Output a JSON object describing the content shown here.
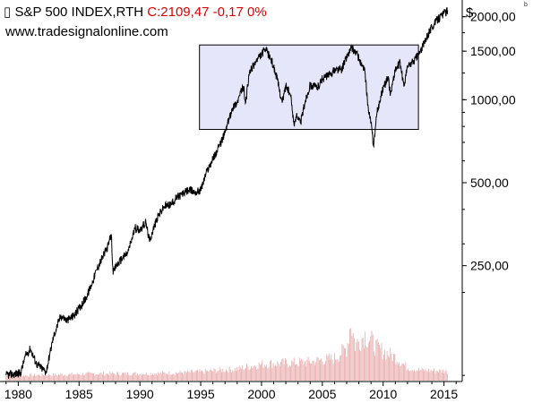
{
  "header": {
    "symbol": "S&P 500 INDEX,RTH",
    "close": "C:2109,47 -0,17 0%",
    "source": "www.tradesignalonline.com",
    "currency": "$",
    "corner_mark": "b"
  },
  "colors": {
    "price_line": "#000000",
    "volume_bars": "#e8a8a8",
    "highlight_fill": "#e6e6fa",
    "highlight_stroke": "#000000",
    "close_text": "#e00000"
  },
  "chart_data": {
    "type": "line",
    "title": "S&P 500 INDEX,RTH",
    "y_scale": "log",
    "ylim": [
      95,
      2300
    ],
    "xlim": [
      1978.5,
      2016.5
    ],
    "y_ticks": [
      {
        "value": 2000,
        "label": "2000,00"
      },
      {
        "value": 1500,
        "label": "1500,00"
      },
      {
        "value": 1000,
        "label": "1000,00"
      },
      {
        "value": 500,
        "label": "500,00"
      },
      {
        "value": 250,
        "label": "250,00"
      }
    ],
    "x_ticks": [
      {
        "value": 1980,
        "label": "1980"
      },
      {
        "value": 1985,
        "label": "1985"
      },
      {
        "value": 1990,
        "label": "1990"
      },
      {
        "value": 1995,
        "label": "1995"
      },
      {
        "value": 2000,
        "label": "2000"
      },
      {
        "value": 2005,
        "label": "2005"
      },
      {
        "value": 2010,
        "label": "2010"
      },
      {
        "value": 2015,
        "label": "2015"
      }
    ],
    "series": [
      {
        "points": [
          [
            1979.0,
            100
          ],
          [
            1980.2,
            102
          ],
          [
            1980.6,
            118
          ],
          [
            1981.0,
            125
          ],
          [
            1981.5,
            110
          ],
          [
            1982.3,
            103
          ],
          [
            1982.6,
            120
          ],
          [
            1982.9,
            138
          ],
          [
            1983.5,
            165
          ],
          [
            1984.0,
            158
          ],
          [
            1984.6,
            165
          ],
          [
            1985.0,
            175
          ],
          [
            1985.6,
            192
          ],
          [
            1986.0,
            212
          ],
          [
            1986.5,
            245
          ],
          [
            1987.0,
            272
          ],
          [
            1987.4,
            296
          ],
          [
            1987.65,
            325
          ],
          [
            1987.8,
            232
          ],
          [
            1988.0,
            248
          ],
          [
            1988.6,
            268
          ],
          [
            1989.0,
            278
          ],
          [
            1989.6,
            342
          ],
          [
            1990.0,
            338
          ],
          [
            1990.5,
            358
          ],
          [
            1990.8,
            305
          ],
          [
            1991.0,
            330
          ],
          [
            1991.5,
            378
          ],
          [
            1992.0,
            410
          ],
          [
            1992.6,
            418
          ],
          [
            1993.0,
            440
          ],
          [
            1993.6,
            458
          ],
          [
            1994.0,
            470
          ],
          [
            1994.6,
            462
          ],
          [
            1995.0,
            470
          ],
          [
            1995.5,
            550
          ],
          [
            1996.0,
            610
          ],
          [
            1996.5,
            672
          ],
          [
            1997.0,
            760
          ],
          [
            1997.6,
            935
          ],
          [
            1998.0,
            980
          ],
          [
            1998.5,
            1120
          ],
          [
            1998.7,
            975
          ],
          [
            1999.0,
            1250
          ],
          [
            1999.5,
            1370
          ],
          [
            2000.0,
            1460
          ],
          [
            2000.3,
            1520
          ],
          [
            2000.7,
            1430
          ],
          [
            2001.0,
            1320
          ],
          [
            2001.3,
            1180
          ],
          [
            2001.7,
            975
          ],
          [
            2002.0,
            1130
          ],
          [
            2002.4,
            1030
          ],
          [
            2002.7,
            800
          ],
          [
            2002.9,
            895
          ],
          [
            2003.2,
            820
          ],
          [
            2003.6,
            990
          ],
          [
            2004.0,
            1130
          ],
          [
            2004.6,
            1110
          ],
          [
            2005.0,
            1190
          ],
          [
            2005.6,
            1230
          ],
          [
            2006.0,
            1280
          ],
          [
            2006.6,
            1290
          ],
          [
            2007.0,
            1430
          ],
          [
            2007.4,
            1540
          ],
          [
            2007.8,
            1480
          ],
          [
            2008.2,
            1340
          ],
          [
            2008.5,
            1260
          ],
          [
            2008.8,
            900
          ],
          [
            2009.0,
            830
          ],
          [
            2009.2,
            680
          ],
          [
            2009.5,
            900
          ],
          [
            2010.0,
            1110
          ],
          [
            2010.4,
            1200
          ],
          [
            2010.6,
            1050
          ],
          [
            2011.0,
            1290
          ],
          [
            2011.4,
            1360
          ],
          [
            2011.7,
            1120
          ],
          [
            2012.0,
            1320
          ],
          [
            2012.5,
            1380
          ],
          [
            2013.0,
            1480
          ],
          [
            2013.5,
            1650
          ],
          [
            2014.0,
            1840
          ],
          [
            2014.5,
            1960
          ],
          [
            2015.0,
            2060
          ],
          [
            2015.3,
            2109.47
          ]
        ]
      }
    ],
    "highlight_box": {
      "x": [
        1994.9,
        2012.9
      ],
      "y": [
        780,
        1580
      ]
    },
    "volume": {
      "relative": [
        [
          1979.0,
          0.08
        ],
        [
          1983.0,
          0.1
        ],
        [
          1987.0,
          0.12
        ],
        [
          1991.0,
          0.12
        ],
        [
          1995.0,
          0.15
        ],
        [
          1998.0,
          0.2
        ],
        [
          2000.0,
          0.28
        ],
        [
          2002.0,
          0.3
        ],
        [
          2004.0,
          0.32
        ],
        [
          2006.0,
          0.38
        ],
        [
          2007.0,
          0.55
        ],
        [
          2007.35,
          1.0
        ],
        [
          2007.7,
          0.6
        ],
        [
          2008.5,
          0.78
        ],
        [
          2009.0,
          0.68
        ],
        [
          2009.5,
          0.55
        ],
        [
          2010.0,
          0.5
        ],
        [
          2011.0,
          0.4
        ],
        [
          2012.0,
          0.22
        ],
        [
          2013.0,
          0.18
        ],
        [
          2015.3,
          0.16
        ]
      ]
    }
  }
}
